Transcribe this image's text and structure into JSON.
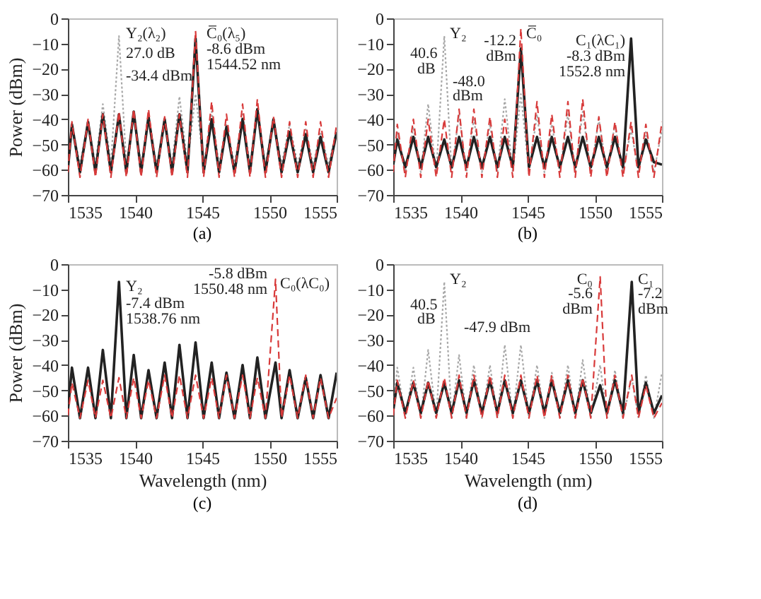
{
  "chart_data": [
    {
      "type": "line",
      "title": "(a)",
      "ylabel": "Power (dBm)",
      "xlim": [
        1535,
        1555
      ],
      "ylim": [
        -70,
        0
      ],
      "xticks": [
        1535,
        1540,
        1545,
        1550,
        1555
      ],
      "yticks": [
        -70,
        -60,
        -50,
        -40,
        -30,
        -20,
        -10,
        0
      ],
      "grid": false,
      "x": [
        1535.0,
        1535.3,
        1535.9,
        1536.5,
        1537.05,
        1537.6,
        1538.2,
        1538.8,
        1539.35,
        1539.9,
        1540.45,
        1541.0,
        1541.6,
        1542.2,
        1542.75,
        1543.3,
        1543.9,
        1544.5,
        1545.1,
        1545.7,
        1546.25,
        1546.8,
        1547.4,
        1548.0,
        1548.55,
        1549.1,
        1549.7,
        1550.3,
        1550.9,
        1551.5,
        1552.1,
        1552.7,
        1553.25,
        1553.8,
        1554.4,
        1555.0
      ],
      "series": [
        {
          "color": "#a8a8a8",
          "line_style": "dotted",
          "values": [
            -58,
            -42,
            -58,
            -41,
            -58,
            -34,
            -58,
            -7,
            -58,
            -38,
            -58,
            -40,
            -58,
            -42,
            -58,
            -31,
            -58,
            -30,
            -58,
            -37,
            -58,
            -42,
            -58,
            -38,
            -58,
            -37,
            -58,
            -40,
            -58,
            -42,
            -58,
            -44,
            -58,
            -45,
            -58,
            -44
          ]
        },
        {
          "color": "#222222",
          "line_style": "solid",
          "values": [
            -60,
            -42,
            -61,
            -41,
            -61,
            -38,
            -61,
            -38,
            -61,
            -37,
            -61,
            -39,
            -61,
            -40,
            -61,
            -38,
            -61,
            -8,
            -61,
            -40,
            -61,
            -43,
            -61,
            -40,
            -61,
            -36,
            -61,
            -40,
            -61,
            -45,
            -61,
            -46,
            -61,
            -47,
            -61,
            -45
          ]
        },
        {
          "color": "#d83a3a",
          "line_style": "dashed",
          "values": [
            -61,
            -41,
            -63,
            -40,
            -63,
            -38,
            -63,
            -37,
            -63,
            -36,
            -63,
            -36,
            -63,
            -39,
            -63,
            -38,
            -63,
            -5,
            -63,
            -33,
            -63,
            -38,
            -63,
            -34,
            -63,
            -32,
            -63,
            -39,
            -63,
            -41,
            -63,
            -41,
            -63,
            -41,
            -63,
            -42
          ]
        }
      ],
      "annotations": [
        "Y₂(λ₂)",
        "27.0 dB",
        "-34.4 dBm",
        "C̅₀(λ₅)",
        "-8.6 dBm",
        "1544.52 nm"
      ]
    },
    {
      "type": "line",
      "title": "(b)",
      "xlim": [
        1535,
        1555
      ],
      "ylim": [
        -70,
        0
      ],
      "xticks": [
        1535,
        1540,
        1545,
        1550,
        1555
      ],
      "yticks": [
        -70,
        -60,
        -50,
        -40,
        -30,
        -20,
        -10,
        0
      ],
      "grid": false,
      "x": [
        1535.0,
        1535.3,
        1535.9,
        1536.5,
        1537.05,
        1537.6,
        1538.2,
        1538.8,
        1539.35,
        1539.9,
        1540.45,
        1541.0,
        1541.6,
        1542.2,
        1542.75,
        1543.3,
        1543.9,
        1544.5,
        1545.1,
        1545.7,
        1546.25,
        1546.8,
        1547.4,
        1548.0,
        1548.55,
        1549.1,
        1549.7,
        1550.3,
        1550.9,
        1551.5,
        1552.1,
        1552.7,
        1553.25,
        1553.8,
        1554.4,
        1555.0
      ],
      "series": [
        {
          "color": "#a8a8a8",
          "line_style": "dotted",
          "values": [
            -60,
            -45,
            -61,
            -43,
            -61,
            -34,
            -61,
            -7,
            -61,
            -38,
            -61,
            -40,
            -61,
            -42,
            -61,
            -32,
            -61,
            -30,
            -61,
            -38,
            -61,
            -42,
            -61,
            -38,
            -61,
            -37,
            -61,
            -40,
            -61,
            -42,
            -61,
            -44,
            -61,
            -45,
            -61,
            -44
          ]
        },
        {
          "color": "#222222",
          "line_style": "solid",
          "values": [
            -58,
            -48,
            -59,
            -47,
            -59,
            -47,
            -59,
            -48,
            -59,
            -47,
            -59,
            -47,
            -59,
            -47,
            -59,
            -47,
            -59,
            -12,
            -59,
            -47,
            -59,
            -47,
            -59,
            -47,
            -59,
            -47,
            -59,
            -47,
            -59,
            -47,
            -59,
            -8,
            -59,
            -48,
            -57,
            -58
          ]
        },
        {
          "color": "#d83a3a",
          "line_style": "dashed",
          "values": [
            -61,
            -42,
            -63,
            -40,
            -63,
            -40,
            -63,
            -40,
            -63,
            -36,
            -63,
            -36,
            -63,
            -39,
            -63,
            -40,
            -63,
            -4,
            -63,
            -33,
            -63,
            -38,
            -63,
            -33,
            -63,
            -32,
            -63,
            -39,
            -63,
            -41,
            -63,
            -41,
            -63,
            -42,
            -63,
            -41
          ]
        }
      ],
      "annotations": [
        "Y₂",
        "40.6",
        "dB",
        "-48.0",
        "dBm",
        "-12.2",
        "dBm",
        "C̅₀",
        "C₁(λC₁)",
        "-8.3 dBm",
        "1552.8 nm"
      ]
    },
    {
      "type": "line",
      "title": "(c)",
      "xlabel": "Wavelength (nm)",
      "ylabel": "Power (dBm)",
      "xlim": [
        1535,
        1555
      ],
      "ylim": [
        -70,
        0
      ],
      "xticks": [
        1535,
        1540,
        1545,
        1550,
        1555
      ],
      "yticks": [
        -70,
        -60,
        -50,
        -40,
        -30,
        -20,
        -10,
        0
      ],
      "grid": false,
      "x": [
        1535.0,
        1535.3,
        1535.9,
        1536.5,
        1537.05,
        1537.6,
        1538.2,
        1538.8,
        1539.35,
        1539.9,
        1540.45,
        1541.0,
        1541.6,
        1542.2,
        1542.75,
        1543.3,
        1543.9,
        1544.5,
        1545.1,
        1545.7,
        1546.25,
        1546.8,
        1547.4,
        1548.0,
        1548.55,
        1549.1,
        1549.7,
        1550.45,
        1550.9,
        1551.5,
        1552.1,
        1552.7,
        1553.25,
        1553.8,
        1554.4,
        1555.0
      ],
      "series": [
        {
          "color": "#222222",
          "line_style": "solid",
          "values": [
            -58,
            -41,
            -61,
            -41,
            -61,
            -34,
            -61,
            -7,
            -61,
            -36,
            -61,
            -42,
            -61,
            -39,
            -61,
            -32,
            -61,
            -31,
            -61,
            -39,
            -61,
            -43,
            -61,
            -40,
            -61,
            -37,
            -61,
            -39,
            -61,
            -42,
            -61,
            -45,
            -61,
            -44,
            -61,
            -43
          ]
        },
        {
          "color": "#d83a3a",
          "line_style": "dashed",
          "values": [
            -60,
            -47,
            -61,
            -46,
            -61,
            -46,
            -61,
            -45,
            -61,
            -45,
            -61,
            -46,
            -61,
            -44,
            -61,
            -44,
            -61,
            -44,
            -61,
            -45,
            -61,
            -44,
            -61,
            -44,
            -61,
            -45,
            -61,
            -6,
            -61,
            -44,
            -61,
            -44,
            -61,
            -45,
            -61,
            -53
          ]
        }
      ],
      "annotations": [
        "Y₂",
        "-7.4 dBm",
        "1538.76 nm",
        "-5.8 dBm",
        "1550.48 nm",
        "C₀(λC₀)"
      ]
    },
    {
      "type": "line",
      "title": "(d)",
      "xlabel": "Wavelength (nm)",
      "xlim": [
        1535,
        1555
      ],
      "ylim": [
        -70,
        0
      ],
      "xticks": [
        1535,
        1540,
        1545,
        1550,
        1555
      ],
      "yticks": [
        -70,
        -60,
        -50,
        -40,
        -30,
        -20,
        -10,
        0
      ],
      "grid": false,
      "x": [
        1535.0,
        1535.3,
        1535.9,
        1536.5,
        1537.05,
        1537.6,
        1538.2,
        1538.8,
        1539.35,
        1539.9,
        1540.45,
        1541.0,
        1541.6,
        1542.2,
        1542.75,
        1543.3,
        1543.9,
        1544.5,
        1545.1,
        1545.7,
        1546.25,
        1546.8,
        1547.4,
        1548.0,
        1548.55,
        1549.1,
        1549.7,
        1550.4,
        1550.9,
        1551.5,
        1552.1,
        1552.75,
        1553.25,
        1553.8,
        1554.4,
        1555.0
      ],
      "series": [
        {
          "color": "#a8a8a8",
          "line_style": "dotted",
          "values": [
            -58,
            -41,
            -61,
            -41,
            -61,
            -34,
            -61,
            -7,
            -61,
            -36,
            -61,
            -40,
            -61,
            -40,
            -61,
            -32,
            -61,
            -32,
            -61,
            -40,
            -61,
            -43,
            -61,
            -40,
            -61,
            -38,
            -61,
            -40,
            -61,
            -42,
            -61,
            -45,
            -61,
            -44,
            -61,
            -43
          ]
        },
        {
          "color": "#222222",
          "line_style": "solid",
          "values": [
            -58,
            -47,
            -59,
            -47,
            -59,
            -47,
            -59,
            -47,
            -59,
            -46,
            -59,
            -46,
            -59,
            -46,
            -59,
            -46,
            -59,
            -46,
            -59,
            -46,
            -59,
            -46,
            -59,
            -46,
            -59,
            -46,
            -59,
            -48,
            -59,
            -46,
            -59,
            -7,
            -59,
            -47,
            -59,
            -52
          ]
        },
        {
          "color": "#d83a3a",
          "line_style": "dashed",
          "values": [
            -60,
            -46,
            -61,
            -46,
            -61,
            -46,
            -61,
            -45,
            -61,
            -44,
            -61,
            -44,
            -61,
            -44,
            -61,
            -44,
            -61,
            -44,
            -61,
            -44,
            -61,
            -44,
            -61,
            -44,
            -61,
            -45,
            -61,
            -5,
            -61,
            -44,
            -61,
            -44,
            -61,
            -48,
            -61,
            -55
          ]
        }
      ],
      "annotations": [
        "Y₂",
        "40.5",
        "dB",
        "-47.9 dBm",
        "C₀",
        "-5.6",
        "dBm",
        "C₁",
        "-7.2",
        "dBm"
      ]
    }
  ]
}
